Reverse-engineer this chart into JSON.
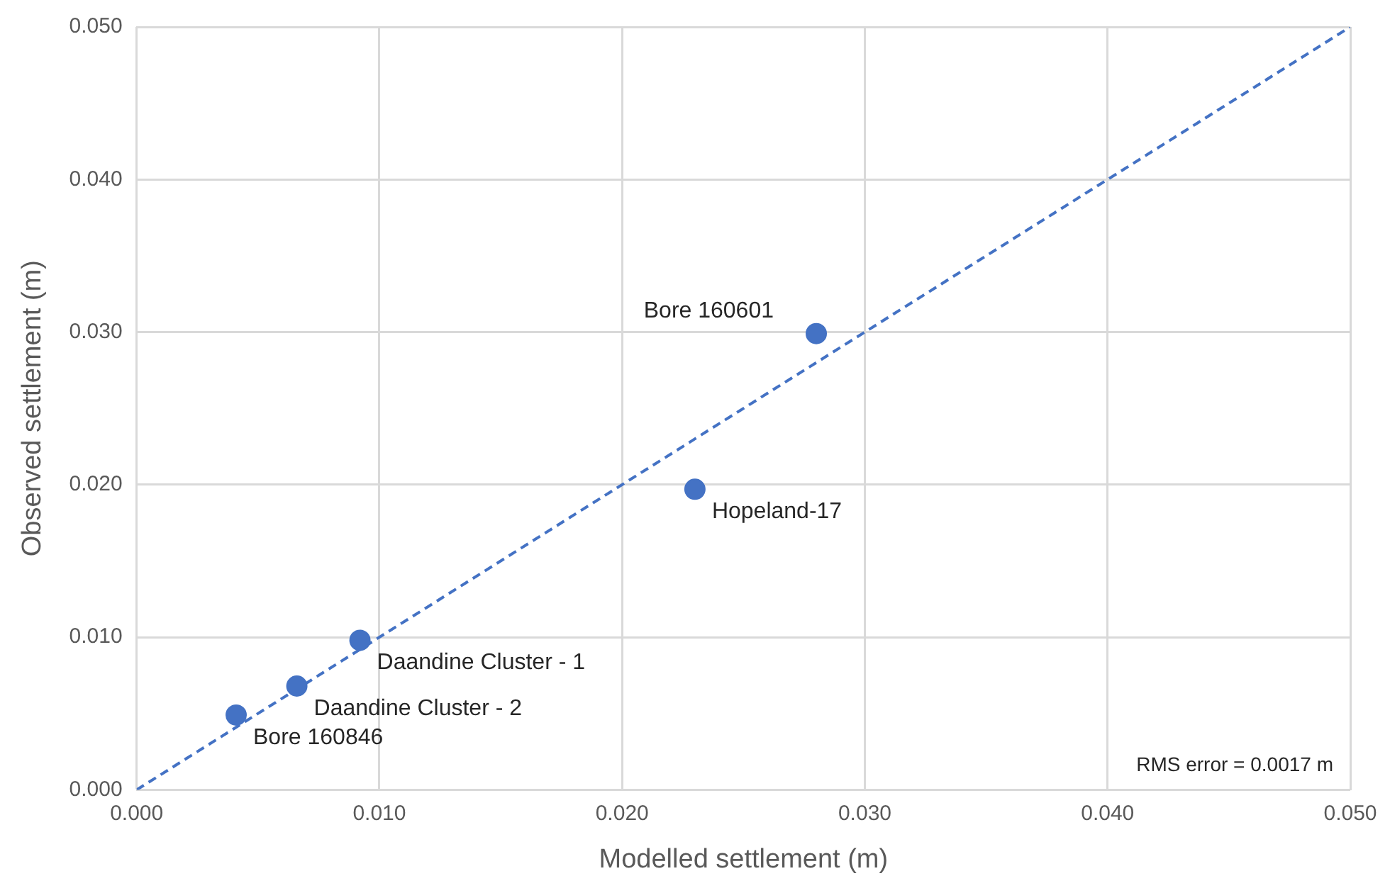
{
  "chart_data": {
    "type": "scatter",
    "xlabel": "Modelled settlement (m)",
    "ylabel": "Observed settlement (m)",
    "series": [
      {
        "type": "scatter",
        "x": [
          0.0041,
          0.0066,
          0.0092,
          0.023,
          0.028
        ],
        "values": [
          0.0049,
          0.0068,
          0.0098,
          0.0197,
          0.0299
        ],
        "color": "#4472c4",
        "marker": "circle"
      },
      {
        "type": "line",
        "x": [
          0,
          0.05
        ],
        "values": [
          0,
          0.05
        ],
        "color": "#4472c4",
        "line_style": "dashed",
        "marker": "none"
      }
    ],
    "xlim": [
      0,
      0.05
    ],
    "ylim": [
      0,
      0.05
    ],
    "xticks": [
      {
        "value": 0,
        "label": "0.000"
      },
      {
        "value": 0.01,
        "label": "0.010"
      },
      {
        "value": 0.02,
        "label": "0.020"
      },
      {
        "value": 0.03,
        "label": "0.030"
      },
      {
        "value": 0.04,
        "label": "0.040"
      },
      {
        "value": 0.05,
        "label": "0.050"
      }
    ],
    "yticks": [
      {
        "value": 0,
        "label": "0.000"
      },
      {
        "value": 0.01,
        "label": "0.010"
      },
      {
        "value": 0.02,
        "label": "0.020"
      },
      {
        "value": 0.03,
        "label": "0.030"
      },
      {
        "value": 0.04,
        "label": "0.040"
      },
      {
        "value": 0.05,
        "label": "0.050"
      }
    ],
    "grid": true,
    "annotations": [
      {
        "text": "Bore 160846",
        "x": 0.0041,
        "y": 0.0049
      },
      {
        "text": "Daandine Cluster - 2",
        "x": 0.0066,
        "y": 0.0068
      },
      {
        "text": "Daandine Cluster - 1",
        "x": 0.0092,
        "y": 0.0098
      },
      {
        "text": "Hopeland-17",
        "x": 0.023,
        "y": 0.0197
      },
      {
        "text": "Bore 160601",
        "x": 0.028,
        "y": 0.0299
      },
      "RMS error = 0.0017 m"
    ]
  }
}
